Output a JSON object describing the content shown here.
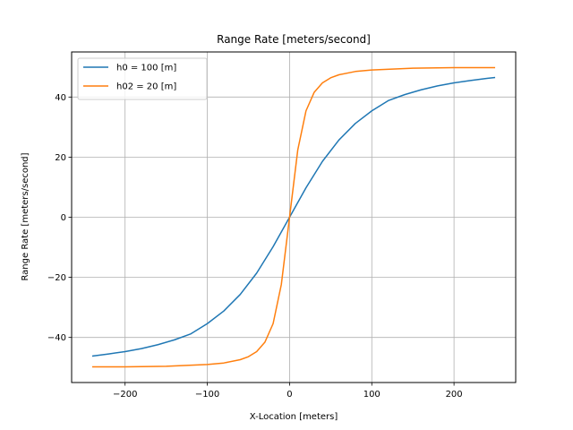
{
  "chart_data": {
    "type": "line",
    "title": "Range Rate [meters/second]",
    "xlabel": "X-Location [meters]",
    "ylabel": "Range Rate [meters/second]",
    "xlim": [
      -265,
      275
    ],
    "ylim": [
      -55,
      55
    ],
    "xticks": [
      -200,
      -100,
      0,
      100,
      200
    ],
    "yticks": [
      -40,
      -20,
      0,
      20,
      40
    ],
    "xtick_labels": [
      "−200",
      "−100",
      "0",
      "100",
      "200"
    ],
    "ytick_labels": [
      "−40",
      "−20",
      "0",
      "20",
      "40"
    ],
    "grid": true,
    "legend_position": "top-left",
    "series": [
      {
        "name": "h0 = 100 [m]",
        "color": "#1f77b4",
        "x": [
          -240,
          -220,
          -200,
          -180,
          -160,
          -140,
          -120,
          -100,
          -80,
          -60,
          -40,
          -20,
          0,
          20,
          40,
          60,
          80,
          100,
          120,
          140,
          160,
          180,
          200,
          220,
          240,
          250
        ],
        "y": [
          -46.2,
          -45.5,
          -44.7,
          -43.7,
          -42.4,
          -40.8,
          -38.8,
          -35.4,
          -31.2,
          -25.7,
          -18.6,
          -9.8,
          0,
          9.8,
          18.6,
          25.7,
          31.2,
          35.4,
          38.8,
          40.8,
          42.4,
          43.7,
          44.7,
          45.5,
          46.2,
          46.5
        ]
      },
      {
        "name": "h02 = 20 [m]",
        "color": "#ff7f0e",
        "x": [
          -240,
          -200,
          -150,
          -100,
          -80,
          -60,
          -50,
          -40,
          -30,
          -20,
          -10,
          0,
          10,
          20,
          30,
          40,
          50,
          60,
          80,
          100,
          150,
          200,
          250
        ],
        "y": [
          -49.8,
          -49.8,
          -49.6,
          -49.0,
          -48.5,
          -47.4,
          -46.4,
          -44.7,
          -41.6,
          -35.4,
          -22.4,
          0,
          22.4,
          35.4,
          41.6,
          44.7,
          46.4,
          47.4,
          48.5,
          49.0,
          49.6,
          49.8,
          49.8
        ]
      }
    ]
  }
}
